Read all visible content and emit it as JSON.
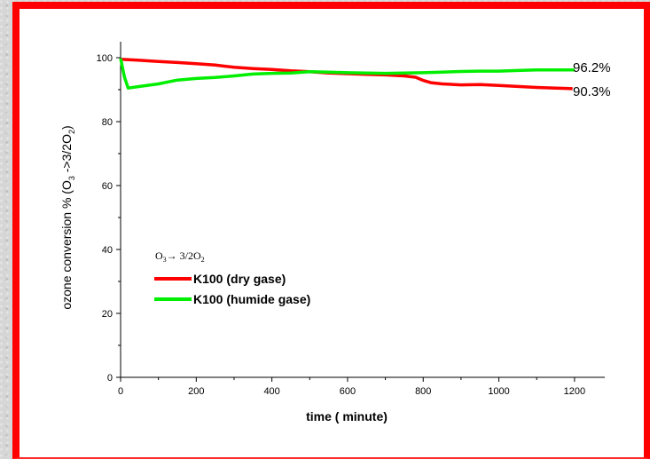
{
  "chart_data": {
    "type": "line",
    "xlabel": "time ( minute)",
    "ylabel": {
      "prefix": "ozone conversion % (O",
      "sub1": "3",
      "mid": " ->3/2O",
      "sub2": "2",
      "suffix": ")"
    },
    "xlim": [
      0,
      1280
    ],
    "ylim": [
      0,
      105
    ],
    "x_ticks": [
      0,
      200,
      400,
      600,
      800,
      1000,
      1200
    ],
    "y_ticks": [
      0,
      20,
      40,
      60,
      80,
      100
    ],
    "grid": false,
    "legend": {
      "placement": "lower-left",
      "header": {
        "a": "O",
        "a_sub": "3",
        "arrow": "→ 3/2O",
        "b_sub": "2"
      }
    },
    "series": [
      {
        "name": "K100 (dry gase)",
        "color": "#ff0000",
        "x": [
          0,
          50,
          100,
          150,
          200,
          250,
          300,
          350,
          400,
          450,
          500,
          550,
          600,
          650,
          700,
          750,
          780,
          800,
          820,
          850,
          900,
          950,
          1000,
          1050,
          1100,
          1150,
          1195
        ],
        "y": [
          99.5,
          99.2,
          98.8,
          98.5,
          98.1,
          97.7,
          97.0,
          96.6,
          96.3,
          95.9,
          95.6,
          95.2,
          95.0,
          94.8,
          94.6,
          94.3,
          93.9,
          92.9,
          92.2,
          91.8,
          91.5,
          91.6,
          91.3,
          91.0,
          90.7,
          90.5,
          90.3
        ]
      },
      {
        "name": "K100 (humide gase)",
        "color": "#00ee00",
        "x": [
          0,
          10,
          20,
          50,
          100,
          150,
          200,
          250,
          300,
          350,
          400,
          450,
          500,
          550,
          600,
          650,
          700,
          750,
          800,
          850,
          900,
          950,
          1000,
          1050,
          1100,
          1150,
          1200
        ],
        "y": [
          99.8,
          94.0,
          90.5,
          91.0,
          91.8,
          93.0,
          93.5,
          93.8,
          94.3,
          94.9,
          95.1,
          95.2,
          95.6,
          95.5,
          95.3,
          95.2,
          95.1,
          95.2,
          95.3,
          95.5,
          95.7,
          95.8,
          95.8,
          96.0,
          96.2,
          96.2,
          96.2
        ]
      }
    ],
    "annotations": [
      "96.2%",
      "90.3%"
    ]
  }
}
